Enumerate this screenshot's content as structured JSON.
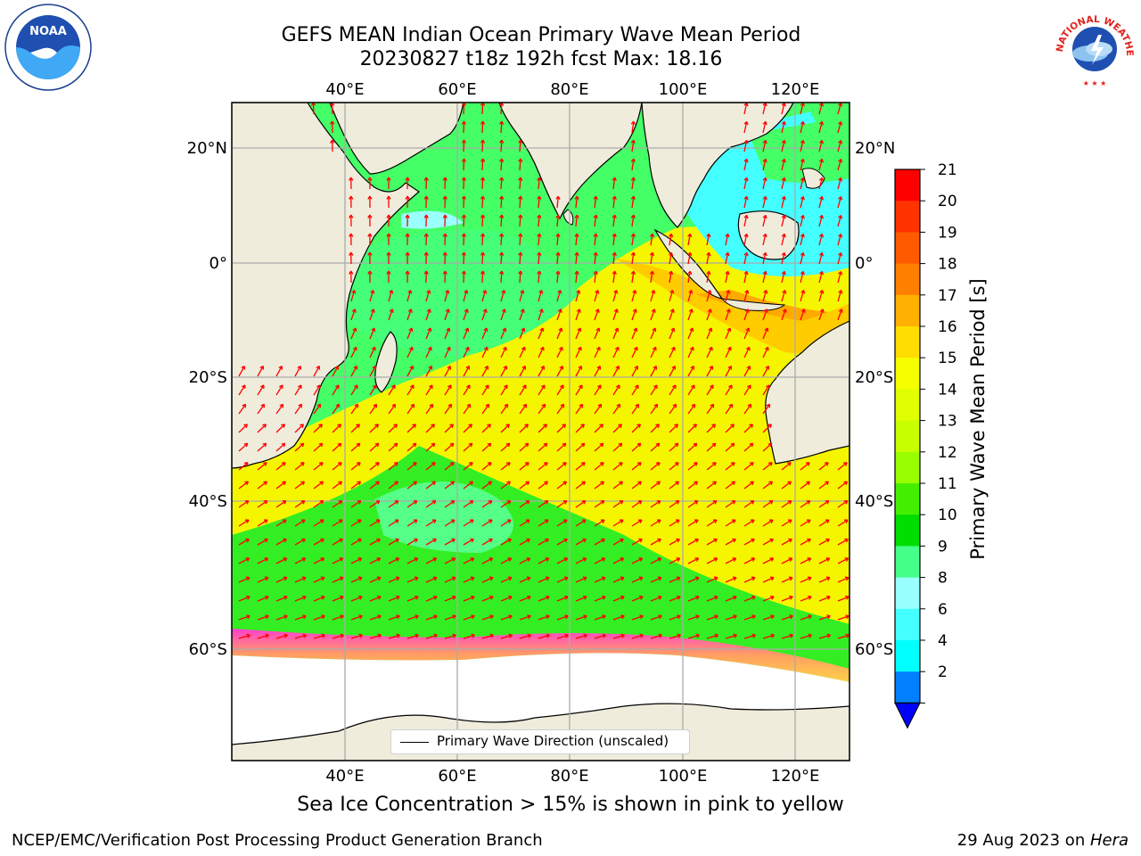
{
  "title": {
    "line1": "GEFS MEAN Indian Ocean Primary Wave Mean Period",
    "line2": "20230827 t18z 192h fcst   Max: 18.16"
  },
  "logos": {
    "left": "noaa-logo",
    "left_text": "NOAA",
    "right": "nws-logo",
    "right_text": "NATIONAL WEATHER SERVICE"
  },
  "map": {
    "lon_labels_top": [
      "40°E",
      "60°E",
      "80°E",
      "100°E",
      "120°E"
    ],
    "lon_labels_bottom": [
      "40°E",
      "60°E",
      "80°E",
      "100°E",
      "120°E"
    ],
    "lat_labels_left": [
      "20°N",
      "0°",
      "20°S",
      "40°S",
      "60°S"
    ],
    "lat_labels_right": [
      "20°N",
      "0°",
      "20°S",
      "40°S",
      "60°S"
    ],
    "legend": "Primary Wave Direction (unscaled)",
    "colors": {
      "land": "#efecdc",
      "ice": "#ffffff",
      "arrow": "#ff0000"
    }
  },
  "colorbar": {
    "label": "Primary Wave Mean Period [s]",
    "ticks": [
      "21",
      "20",
      "19",
      "18",
      "17",
      "16",
      "15",
      "14",
      "13",
      "12",
      "11",
      "10",
      "9",
      "8",
      "6",
      "4",
      "2"
    ],
    "colors": [
      "#ff0000",
      "#ff3300",
      "#ff5a00",
      "#ff8000",
      "#ffb000",
      "#ffdd00",
      "#f5ff00",
      "#e0ff00",
      "#c8ff00",
      "#99ff00",
      "#44ee00",
      "#00dd00",
      "#44ff88",
      "#99ffff",
      "#44ffff",
      "#00ffff",
      "#0080ff"
    ],
    "extend_color": "#0000ff"
  },
  "caption": "Sea Ice Concentration > 15% is shown in pink to yellow",
  "footer": {
    "left": "NCEP/EMC/Verification Post Processing Product Generation Branch",
    "right_date": "29 Aug 2023 on ",
    "right_host": "Hera"
  }
}
